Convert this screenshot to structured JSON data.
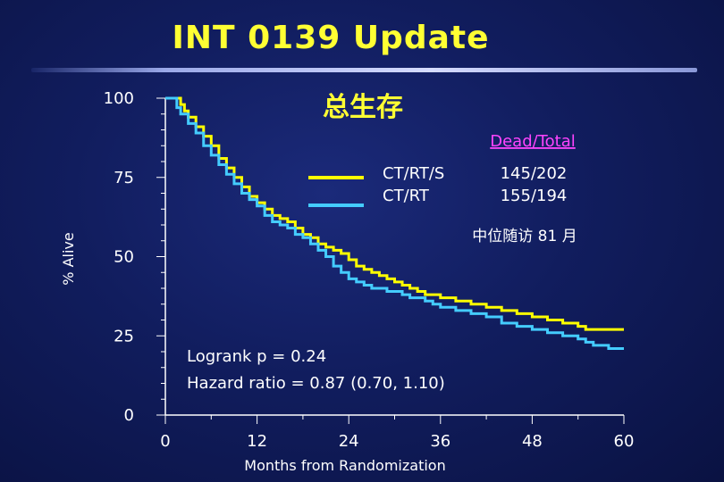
{
  "slide": {
    "title": "INT 0139 Update"
  },
  "chart_data": {
    "type": "line",
    "subtitle": "总生存",
    "xlabel": "Months from Randomization",
    "ylabel": "% Alive",
    "xlim": [
      0,
      60
    ],
    "ylim": [
      0,
      100
    ],
    "xticks": [
      0,
      12,
      24,
      36,
      48,
      60
    ],
    "yticks": [
      0,
      25,
      50,
      75,
      100
    ],
    "legend": {
      "header": "Dead/Total",
      "entries": [
        {
          "label": "CT/RT/S",
          "value": "145/202",
          "color": "#ffff00"
        },
        {
          "label": "CT/RT",
          "value": "155/194",
          "color": "#44ccff"
        }
      ]
    },
    "annotations": {
      "followup": "中位随访 81 月",
      "logrank": "Logrank p = 0.24",
      "hazard": "Hazard ratio = 0.87 (0.70, 1.10)"
    },
    "series": [
      {
        "name": "CT/RT/S",
        "color": "#ffff00",
        "points": [
          [
            0,
            100
          ],
          [
            1.5,
            100
          ],
          [
            2,
            98
          ],
          [
            2.5,
            96
          ],
          [
            3,
            94
          ],
          [
            4,
            91
          ],
          [
            5,
            88
          ],
          [
            6,
            85
          ],
          [
            7,
            81
          ],
          [
            8,
            78
          ],
          [
            9,
            75
          ],
          [
            10,
            72
          ],
          [
            11,
            69
          ],
          [
            12,
            67
          ],
          [
            13,
            65
          ],
          [
            14,
            63
          ],
          [
            15,
            62
          ],
          [
            16,
            61
          ],
          [
            17,
            59
          ],
          [
            18,
            57
          ],
          [
            19,
            56
          ],
          [
            20,
            54
          ],
          [
            21,
            53
          ],
          [
            22,
            52
          ],
          [
            23,
            51
          ],
          [
            24,
            49
          ],
          [
            25,
            47
          ],
          [
            26,
            46
          ],
          [
            27,
            45
          ],
          [
            28,
            44
          ],
          [
            29,
            43
          ],
          [
            30,
            42
          ],
          [
            31,
            41
          ],
          [
            32,
            40
          ],
          [
            33,
            39
          ],
          [
            34,
            38
          ],
          [
            35,
            38
          ],
          [
            36,
            37
          ],
          [
            38,
            36
          ],
          [
            40,
            35
          ],
          [
            42,
            34
          ],
          [
            44,
            33
          ],
          [
            46,
            32
          ],
          [
            48,
            31
          ],
          [
            50,
            30
          ],
          [
            52,
            29
          ],
          [
            54,
            28
          ],
          [
            55,
            27
          ],
          [
            58,
            27
          ],
          [
            60,
            27
          ]
        ]
      },
      {
        "name": "CT/RT",
        "color": "#44ccff",
        "points": [
          [
            0,
            100
          ],
          [
            1,
            100
          ],
          [
            1.5,
            97
          ],
          [
            2,
            95
          ],
          [
            3,
            92
          ],
          [
            4,
            89
          ],
          [
            5,
            85
          ],
          [
            6,
            82
          ],
          [
            7,
            79
          ],
          [
            8,
            76
          ],
          [
            9,
            73
          ],
          [
            10,
            70
          ],
          [
            11,
            68
          ],
          [
            12,
            66
          ],
          [
            13,
            63
          ],
          [
            14,
            61
          ],
          [
            15,
            60
          ],
          [
            16,
            59
          ],
          [
            17,
            57
          ],
          [
            18,
            56
          ],
          [
            19,
            54
          ],
          [
            20,
            52
          ],
          [
            21,
            50
          ],
          [
            22,
            47
          ],
          [
            23,
            45
          ],
          [
            24,
            43
          ],
          [
            25,
            42
          ],
          [
            26,
            41
          ],
          [
            27,
            40
          ],
          [
            28,
            40
          ],
          [
            29,
            39
          ],
          [
            30,
            39
          ],
          [
            31,
            38
          ],
          [
            32,
            37
          ],
          [
            33,
            37
          ],
          [
            34,
            36
          ],
          [
            35,
            35
          ],
          [
            36,
            34
          ],
          [
            38,
            33
          ],
          [
            40,
            32
          ],
          [
            42,
            31
          ],
          [
            44,
            29
          ],
          [
            46,
            28
          ],
          [
            48,
            27
          ],
          [
            50,
            26
          ],
          [
            52,
            25
          ],
          [
            54,
            24
          ],
          [
            55,
            23
          ],
          [
            56,
            22
          ],
          [
            57,
            22
          ],
          [
            58,
            21
          ],
          [
            60,
            21
          ]
        ]
      }
    ]
  }
}
